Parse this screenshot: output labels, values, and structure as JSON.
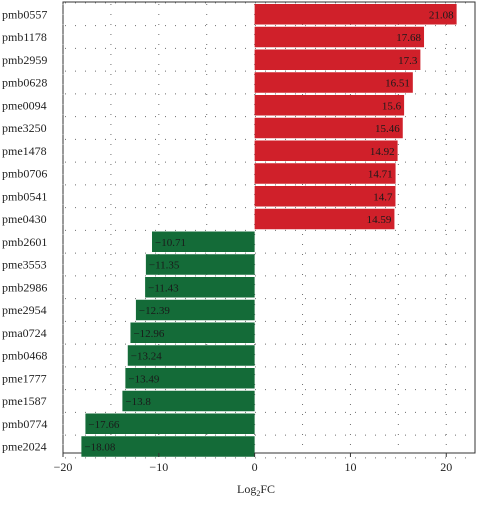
{
  "chart_data": {
    "type": "bar",
    "orientation": "horizontal",
    "title": "",
    "xlabel_main": "Log",
    "xlabel_sub": "2",
    "xlabel_tail": "FC",
    "ylabel": "",
    "xlim": [
      -20,
      23
    ],
    "xticks": [
      -20,
      -10,
      0,
      10,
      20
    ],
    "xtick_labels": [
      "−20",
      "−10",
      "0",
      "10",
      "20"
    ],
    "grid": "dotted",
    "colors": {
      "positive": "#d0202a",
      "negative": "#146b38"
    },
    "categories": [
      "pmb0557",
      "pmb1178",
      "pmb2959",
      "pmb0628",
      "pme0094",
      "pme3250",
      "pme1478",
      "pmb0706",
      "pmb0541",
      "pme0430",
      "pmb2601",
      "pme3553",
      "pmb2986",
      "pme2954",
      "pma0724",
      "pmb0468",
      "pme1777",
      "pme1587",
      "pmb0774",
      "pme2024"
    ],
    "values": [
      21.08,
      17.68,
      17.3,
      16.51,
      15.6,
      15.46,
      14.92,
      14.71,
      14.7,
      14.59,
      -10.71,
      -11.35,
      -11.43,
      -12.39,
      -12.96,
      -13.24,
      -13.49,
      -13.8,
      -17.66,
      -18.08
    ],
    "value_labels": [
      "21.08",
      "17.68",
      "17.3",
      "16.51",
      "15.6",
      "15.46",
      "14.92",
      "14.71",
      "14.7",
      "14.59",
      "−10.71",
      "−11.35",
      "−11.43",
      "−12.39",
      "−12.96",
      "−13.24",
      "−13.49",
      "−13.8",
      "−17.66",
      "−18.08"
    ]
  }
}
